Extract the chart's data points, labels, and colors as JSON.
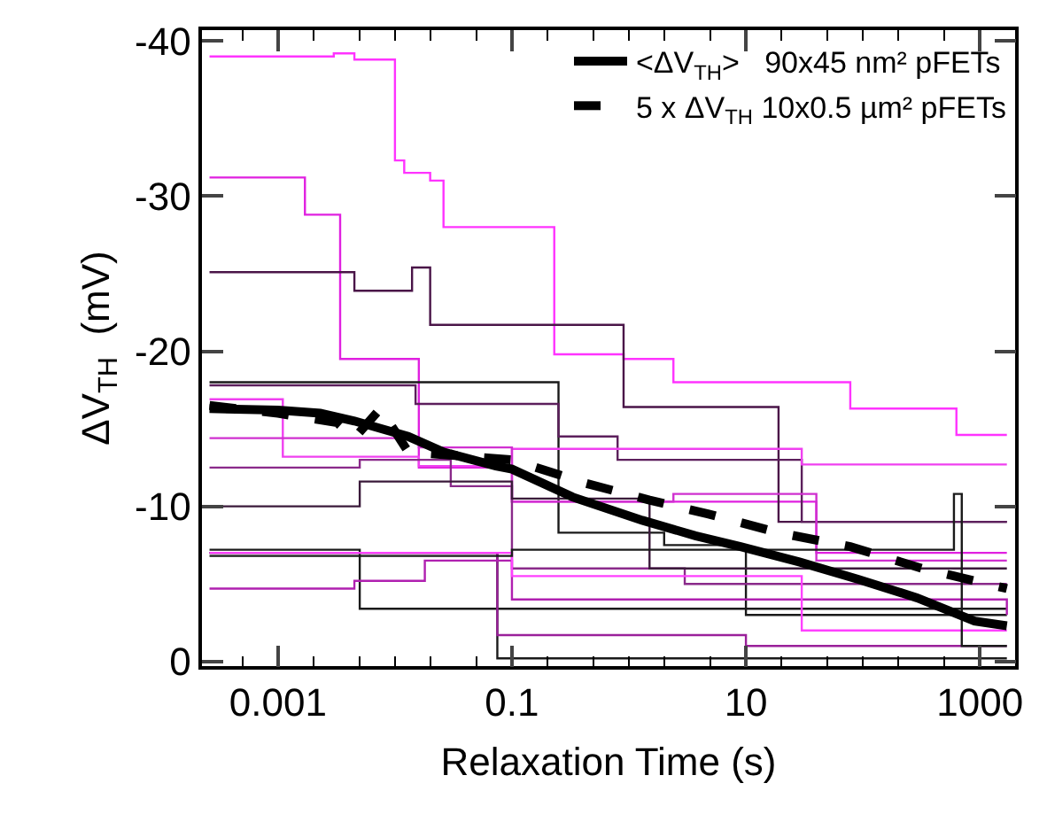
{
  "chart_data": {
    "type": "step",
    "xlabel": "Relaxation Time (s)",
    "ylabel": "ΔV$_{TH}$  (mV)",
    "log": "x",
    "xlim": [
      0.000224,
      2000
    ],
    "xticks": [
      0.001,
      0.1,
      10,
      1000
    ],
    "ylim": [
      0.3,
      -40.7
    ],
    "yticks": [
      0,
      -10,
      -20,
      -30,
      -40
    ],
    "grid": false,
    "legend": "top right",
    "marker": "none",
    "series": [
      {
        "color": "#ff33ff",
        "x": [
          0.00026,
          0.003,
          0.0045,
          0.01,
          0.012,
          0.02,
          0.026,
          0.23,
          0.9,
          2.4,
          78,
          630,
          1700
        ],
        "values": [
          -39,
          -39.2,
          -38.8,
          -32.3,
          -31.5,
          -31,
          -28,
          -19.8,
          -19.5,
          -18,
          -16.3,
          -14.6,
          -14.6
        ]
      },
      {
        "color": "#e020e0",
        "x": [
          0.00026,
          0.0017,
          0.0034,
          0.016,
          0.1,
          40,
          1700
        ],
        "values": [
          -31.2,
          -28.8,
          -19.5,
          -12.5,
          -10.3,
          -7,
          -7
        ]
      },
      {
        "color": "#4a1548",
        "x": [
          0.00026,
          0.0045,
          0.014,
          0.02,
          0.9,
          19,
          1700
        ],
        "values": [
          -25.1,
          -23.9,
          -25.4,
          -21.7,
          -16.4,
          -9,
          -9
        ]
      },
      {
        "color": "#1a1a1a",
        "x": [
          0.00026,
          0.25,
          2,
          10,
          1700
        ],
        "values": [
          -18,
          -8.3,
          -7.5,
          -3,
          -3
        ]
      },
      {
        "color": "#5c1f5c",
        "x": [
          0.00026,
          0.015,
          0.25,
          0.8,
          30,
          1700
        ],
        "values": [
          -17.8,
          -16.6,
          -14.5,
          -13,
          -9,
          -9
        ]
      },
      {
        "color": "#f040f0",
        "x": [
          0.00026,
          0.0011,
          0.016,
          0.1,
          30,
          1700
        ],
        "values": [
          -16.9,
          -13.2,
          -12.6,
          -13.7,
          -12.7,
          -12.7
        ]
      },
      {
        "color": "#d030d0",
        "x": [
          0.00026,
          0.016,
          0.1,
          2.4,
          40,
          1700
        ],
        "values": [
          -14.4,
          -13.8,
          -10.3,
          -10.8,
          -6.5,
          -6.5
        ]
      },
      {
        "color": "#8a2a8a",
        "x": [
          0.00026,
          0.005,
          0.03,
          0.1,
          3,
          1700
        ],
        "values": [
          -12.5,
          -13,
          -11.3,
          -6,
          -5,
          -5
        ]
      },
      {
        "color": "#3a1a3a",
        "x": [
          0.00026,
          0.005,
          0.1,
          1.5,
          1700
        ],
        "values": [
          -10,
          -11.6,
          -10.5,
          -6,
          -6
        ]
      },
      {
        "color": "#1a1a1a",
        "x": [
          0.00026,
          0.005,
          1700
        ],
        "values": [
          -7.2,
          -3.4,
          -3.4
        ]
      },
      {
        "color": "#1a1a1a",
        "x": [
          0.00026,
          0.075,
          1700
        ],
        "values": [
          -7,
          -0.2,
          -0.2
        ]
      },
      {
        "color": "#9a209a",
        "x": [
          0.00026,
          0.075,
          10,
          1700
        ],
        "values": [
          -7,
          -1.7,
          -1,
          -1
        ]
      },
      {
        "color": "#b020b0",
        "x": [
          0.00026,
          0.0045,
          0.018,
          0.1,
          1700
        ],
        "values": [
          -4.7,
          -5.2,
          -6.5,
          -4,
          -3
        ]
      },
      {
        "color": "#ff40ff",
        "x": [
          0.00026,
          0.1,
          30,
          1700
        ],
        "values": [
          -7,
          -5.5,
          -2,
          -2
        ]
      },
      {
        "color": "#1a1a1a",
        "x": [
          0.00026,
          0.1,
          600,
          700,
          1700
        ],
        "values": [
          -6.8,
          -7.2,
          -10.8,
          -1,
          -1
        ]
      },
      {
        "type": "line",
        "name": "<ΔV$_{TH}$>   90x45 nm² pFETs",
        "color": "#000000",
        "line_style": "solid",
        "x": [
          0.00026,
          0.001,
          0.0023,
          0.0045,
          0.013,
          0.026,
          0.073,
          0.1,
          0.33,
          1.3,
          3.7,
          9,
          29,
          91,
          290,
          900,
          1700
        ],
        "values": [
          -16.3,
          -16.2,
          -16,
          -15.5,
          -14.5,
          -13.5,
          -12.6,
          -12.4,
          -10.6,
          -9.1,
          -8.1,
          -7.4,
          -6.4,
          -5.3,
          -4.1,
          -2.6,
          -2.3
        ]
      },
      {
        "type": "line",
        "name": "5 x ΔV$_{TH}$ 10x0.5 µm² pFETs",
        "color": "#000000",
        "line_style": "dashed",
        "x": [
          0.00026,
          0.001,
          0.0032,
          0.0045,
          0.0075,
          0.013,
          0.1,
          0.42,
          1.5,
          4.8,
          19,
          78,
          320,
          1700
        ],
        "values": [
          -16.5,
          -16,
          -15.4,
          -14.4,
          -16.3,
          -13.5,
          -13,
          -11.5,
          -10.4,
          -9.5,
          -8.3,
          -7.4,
          -6,
          -4.7
        ]
      }
    ]
  }
}
